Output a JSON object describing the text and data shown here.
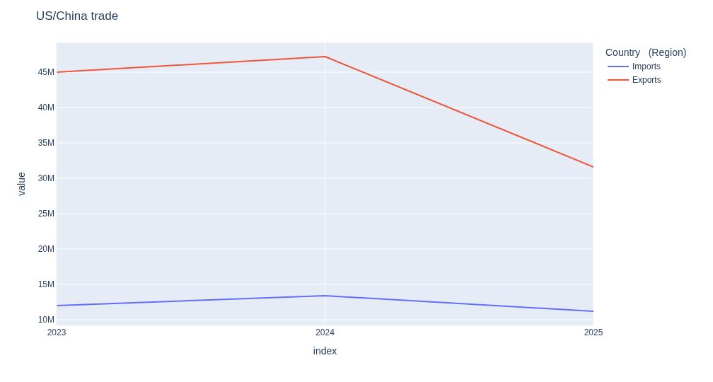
{
  "chart_data": {
    "type": "line",
    "title": "US/China trade",
    "xlabel": "index",
    "ylabel": "value",
    "legend_title": "Country   (Region)",
    "x": [
      2023,
      2024,
      2025
    ],
    "series": [
      {
        "name": "Imports",
        "color": "#636efa",
        "values": [
          12000000,
          13400000,
          11200000
        ]
      },
      {
        "name": "Exports",
        "color": "#ef553b",
        "values": [
          45000000,
          47200000,
          31600000
        ]
      }
    ],
    "xlim": [
      2023,
      2025
    ],
    "xticks": [
      2023,
      2024,
      2025
    ],
    "ylim": [
      9200000,
      49200000
    ],
    "yticks": [
      {
        "value": 10000000,
        "label": "10M"
      },
      {
        "value": 15000000,
        "label": "15M"
      },
      {
        "value": 20000000,
        "label": "20M"
      },
      {
        "value": 25000000,
        "label": "25M"
      },
      {
        "value": 30000000,
        "label": "30M"
      },
      {
        "value": 35000000,
        "label": "35M"
      },
      {
        "value": 40000000,
        "label": "40M"
      },
      {
        "value": 45000000,
        "label": "45M"
      }
    ],
    "grid": true,
    "legend": "top right",
    "marker": "none",
    "line_style": "solid"
  }
}
